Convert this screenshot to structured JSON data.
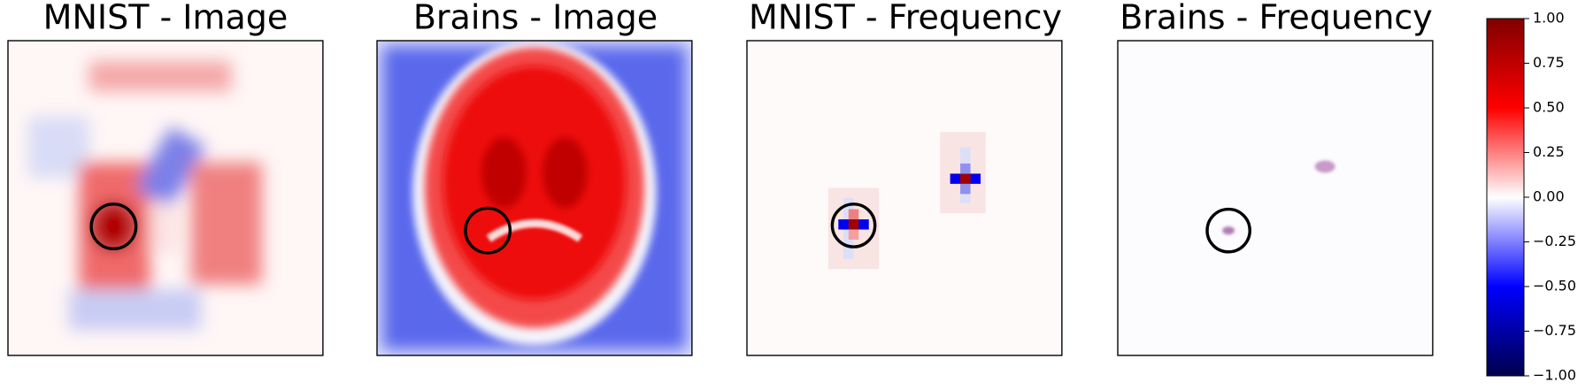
{
  "panels": [
    {
      "title": "MNIST - Image"
    },
    {
      "title": "Brains - Image"
    },
    {
      "title": "MNIST - Frequency"
    },
    {
      "title": "Brains - Frequency"
    }
  ],
  "colorbar": {
    "clim": [
      -1,
      1
    ],
    "ticks": [
      {
        "value": 1,
        "label": "1.00"
      },
      {
        "value": 0.75,
        "label": "0.75"
      },
      {
        "value": 0.5,
        "label": "0.50"
      },
      {
        "value": 0.25,
        "label": "0.25"
      },
      {
        "value": 0,
        "label": "0.00"
      },
      {
        "value": -0.25,
        "label": "−0.25"
      },
      {
        "value": -0.5,
        "label": "−0.50"
      },
      {
        "value": -0.75,
        "label": "−0.75"
      },
      {
        "value": -1,
        "label": "−1.00"
      }
    ]
  }
}
